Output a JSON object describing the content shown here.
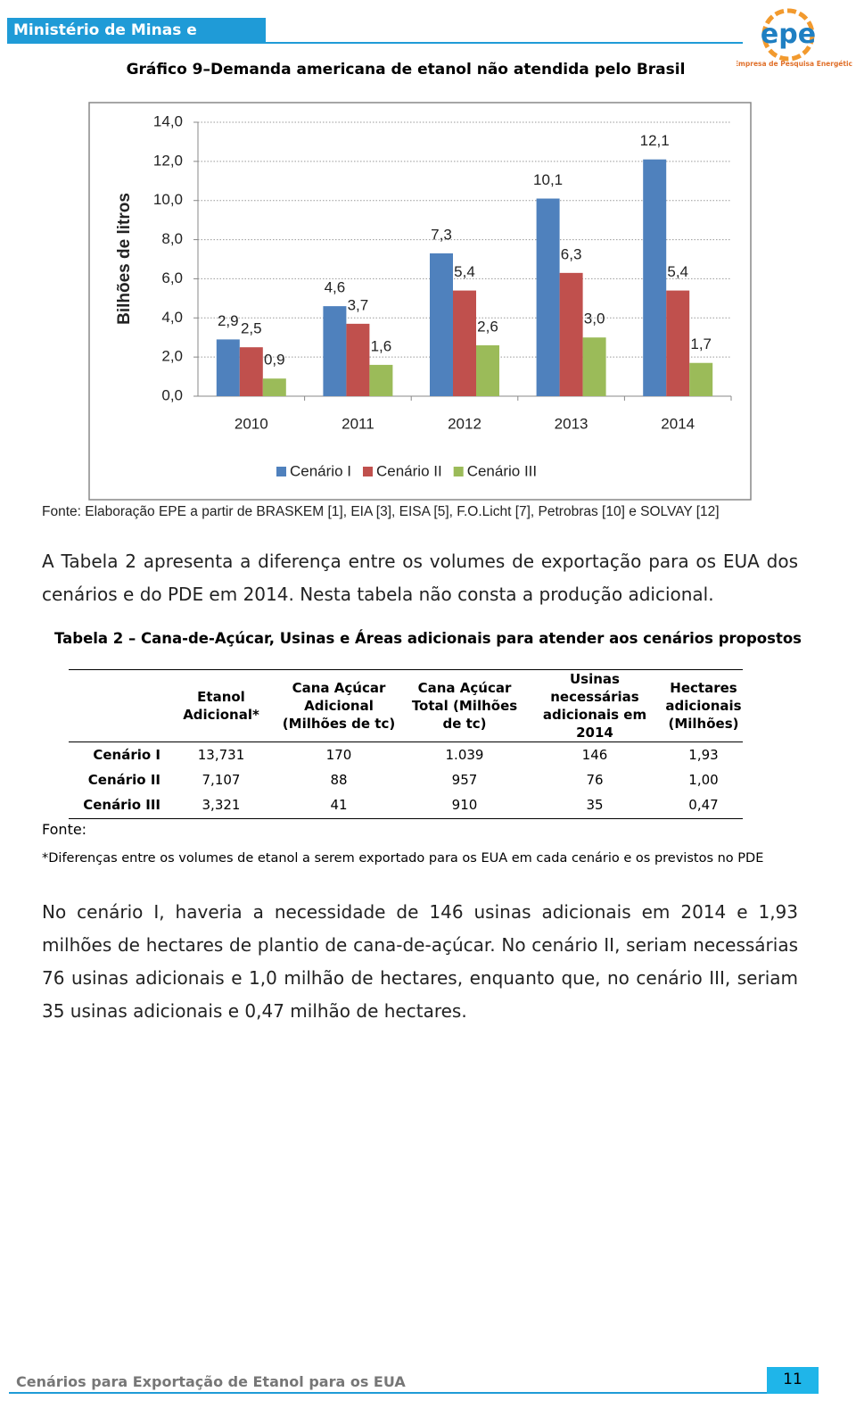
{
  "header": {
    "ministry": "Ministério de Minas e Energia",
    "logo": "epe",
    "logo_tagline": "Empresa de Pesquisa Energética"
  },
  "chart_data": {
    "type": "bar",
    "title": "Gráfico 9–Demanda americana de etanol não atendida pelo Brasil",
    "y_label": "Bilhões de litros",
    "categories": [
      "2010",
      "2011",
      "2012",
      "2013",
      "2014"
    ],
    "series": [
      {
        "name": "Cenário I",
        "color": "#4f81bd",
        "values": [
          2.9,
          4.6,
          7.3,
          10.1,
          12.1
        ],
        "value_labels": [
          "2,9",
          "4,6",
          "7,3",
          "10,1",
          "12,1"
        ]
      },
      {
        "name": "Cenário II",
        "color": "#c0504d",
        "values": [
          2.5,
          3.7,
          5.4,
          6.3,
          5.4
        ],
        "value_labels": [
          "2,5",
          "3,7",
          "5,4",
          "6,3",
          "5,4"
        ]
      },
      {
        "name": "Cenário III",
        "color": "#9bbb59",
        "values": [
          0.9,
          1.6,
          2.6,
          3.0,
          1.7
        ],
        "value_labels": [
          "0,9",
          "1,6",
          "2,6",
          "3,0",
          "1,7"
        ]
      }
    ],
    "ylim": [
      0,
      14
    ],
    "yticks": [
      {
        "value": 0,
        "label": "0,0"
      },
      {
        "value": 2,
        "label": "2,0"
      },
      {
        "value": 4,
        "label": "4,0"
      },
      {
        "value": 6,
        "label": "6,0"
      },
      {
        "value": 8,
        "label": "8,0"
      },
      {
        "value": 10,
        "label": "10,0"
      },
      {
        "value": 12,
        "label": "12,0"
      },
      {
        "value": 14,
        "label": "14,0"
      }
    ],
    "grid": true,
    "legend_position": "bottom",
    "source": "Fonte: Elaboração EPE a partir de BRASKEM [1], EIA [3], EISA [5], F.O.Licht [7], Petrobras [10] e SOLVAY [12]"
  },
  "paragraph1": "A Tabela 2 apresenta a diferença entre os volumes de exportação para os EUA dos cenários e do PDE em 2014. Nesta tabela não consta a produção adicional.",
  "table": {
    "title": "Tabela 2 – Cana-de-Açúcar, Usinas e Áreas adicionais para atender aos cenários propostos",
    "columns": [
      "Etanol Adicional*",
      "Cana Açúcar Adicional (Milhões de tc)",
      "Cana Açúcar Total (Milhões de tc)",
      "Usinas necessárias adicionais em 2014",
      "Hectares adicionais (Milhões)"
    ],
    "rows": [
      {
        "label": "Cenário I",
        "cells": [
          "13,731",
          "170",
          "1.039",
          "146",
          "1,93"
        ]
      },
      {
        "label": "Cenário II",
        "cells": [
          "7,107",
          "88",
          "957",
          "76",
          "1,00"
        ]
      },
      {
        "label": "Cenário III",
        "cells": [
          "3,321",
          "41",
          "910",
          "35",
          "0,47"
        ]
      }
    ],
    "source": "Fonte:",
    "footnote": "*Diferenças entre os volumes de etanol a serem exportado para os EUA em cada cenário e os previstos no PDE"
  },
  "paragraph2": "No cenário I, haveria a necessidade de 146 usinas adicionais em 2014 e 1,93 milhões de hectares de plantio de cana-de-açúcar. No cenário II, seriam necessárias 76 usinas adicionais e 1,0 milhão de hectares, enquanto que, no cenário III, seriam 35 usinas adicionais e 0,47 milhão de hectares.",
  "footer": {
    "title": "Cenários para Exportação de Etanol para os EUA",
    "page": "11"
  }
}
